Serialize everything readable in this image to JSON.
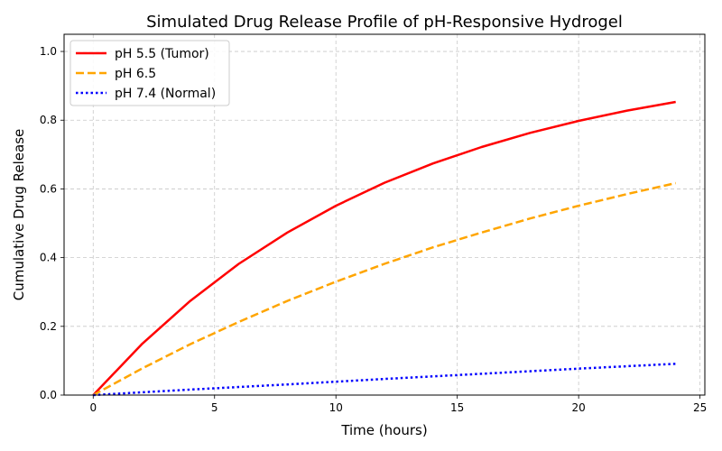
{
  "chart_data": {
    "type": "line",
    "title": "Simulated Drug Release Profile of pH-Responsive Hydrogel",
    "xlabel": "Time (hours)",
    "ylabel": "Cumulative Drug Release",
    "xlim": [
      -1.2,
      25.2
    ],
    "ylim": [
      0,
      1.05
    ],
    "xticks": [
      0,
      5,
      10,
      15,
      20,
      25
    ],
    "yticks": [
      0.0,
      0.2,
      0.4,
      0.6,
      0.8,
      1.0
    ],
    "xtick_labels": [
      "0",
      "5",
      "10",
      "15",
      "20",
      "25"
    ],
    "ytick_labels": [
      "0.0",
      "0.2",
      "0.4",
      "0.6",
      "0.8",
      "1.0"
    ],
    "grid": true,
    "legend_position": "top-left",
    "series": [
      {
        "name": "pH 5.5 (Tumor)",
        "color": "#ff0000",
        "style": "solid",
        "x": [
          0,
          2,
          4,
          6,
          8,
          10,
          12,
          14,
          16,
          18,
          20,
          22,
          24
        ],
        "y": [
          0.0,
          0.148,
          0.274,
          0.382,
          0.473,
          0.551,
          0.618,
          0.674,
          0.722,
          0.763,
          0.798,
          0.828,
          0.853
        ]
      },
      {
        "name": "pH 6.5",
        "color": "#ffa500",
        "style": "dashed",
        "x": [
          0,
          2,
          4,
          6,
          8,
          10,
          12,
          14,
          16,
          18,
          20,
          22,
          24
        ],
        "y": [
          0.0,
          0.077,
          0.148,
          0.213,
          0.274,
          0.33,
          0.382,
          0.43,
          0.473,
          0.514,
          0.551,
          0.585,
          0.617
        ]
      },
      {
        "name": "pH 7.4 (Normal)",
        "color": "#0000ff",
        "style": "dotted",
        "x": [
          0,
          4,
          8,
          12,
          16,
          20,
          24
        ],
        "y": [
          0.0,
          0.016,
          0.031,
          0.047,
          0.062,
          0.077,
          0.091
        ]
      }
    ]
  }
}
